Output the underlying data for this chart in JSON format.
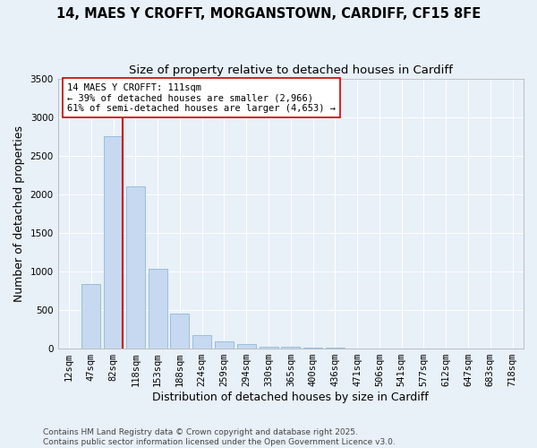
{
  "title_line1": "14, MAES Y CROFFT, MORGANSTOWN, CARDIFF, CF15 8FE",
  "title_line2": "Size of property relative to detached houses in Cardiff",
  "xlabel": "Distribution of detached houses by size in Cardiff",
  "ylabel": "Number of detached properties",
  "categories": [
    "12sqm",
    "47sqm",
    "82sqm",
    "118sqm",
    "153sqm",
    "188sqm",
    "224sqm",
    "259sqm",
    "294sqm",
    "330sqm",
    "365sqm",
    "400sqm",
    "436sqm",
    "471sqm",
    "506sqm",
    "541sqm",
    "577sqm",
    "612sqm",
    "647sqm",
    "683sqm",
    "718sqm"
  ],
  "bar_heights": [
    2,
    840,
    2760,
    2100,
    1030,
    450,
    175,
    95,
    55,
    30,
    20,
    10,
    8,
    5,
    3,
    2,
    2,
    1,
    1,
    1,
    1
  ],
  "bar_color": "#c6d9f0",
  "bar_edge_color": "#8fb8d8",
  "vline_color": "#cc0000",
  "vline_x": 2.43,
  "annotation_text": "14 MAES Y CROFFT: 111sqm\n← 39% of detached houses are smaller (2,966)\n61% of semi-detached houses are larger (4,653) →",
  "annotation_box_color": "#ffffff",
  "annotation_box_edge": "#cc0000",
  "ylim": [
    0,
    3500
  ],
  "yticks": [
    0,
    500,
    1000,
    1500,
    2000,
    2500,
    3000,
    3500
  ],
  "background_color": "#e8f0f8",
  "plot_bg_color": "#e8f0f8",
  "footer_text": "Contains HM Land Registry data © Crown copyright and database right 2025.\nContains public sector information licensed under the Open Government Licence v3.0.",
  "title_fontsize": 10.5,
  "subtitle_fontsize": 9.5,
  "axis_label_fontsize": 9,
  "tick_fontsize": 7.5,
  "annotation_fontsize": 7.5,
  "footer_fontsize": 6.5
}
